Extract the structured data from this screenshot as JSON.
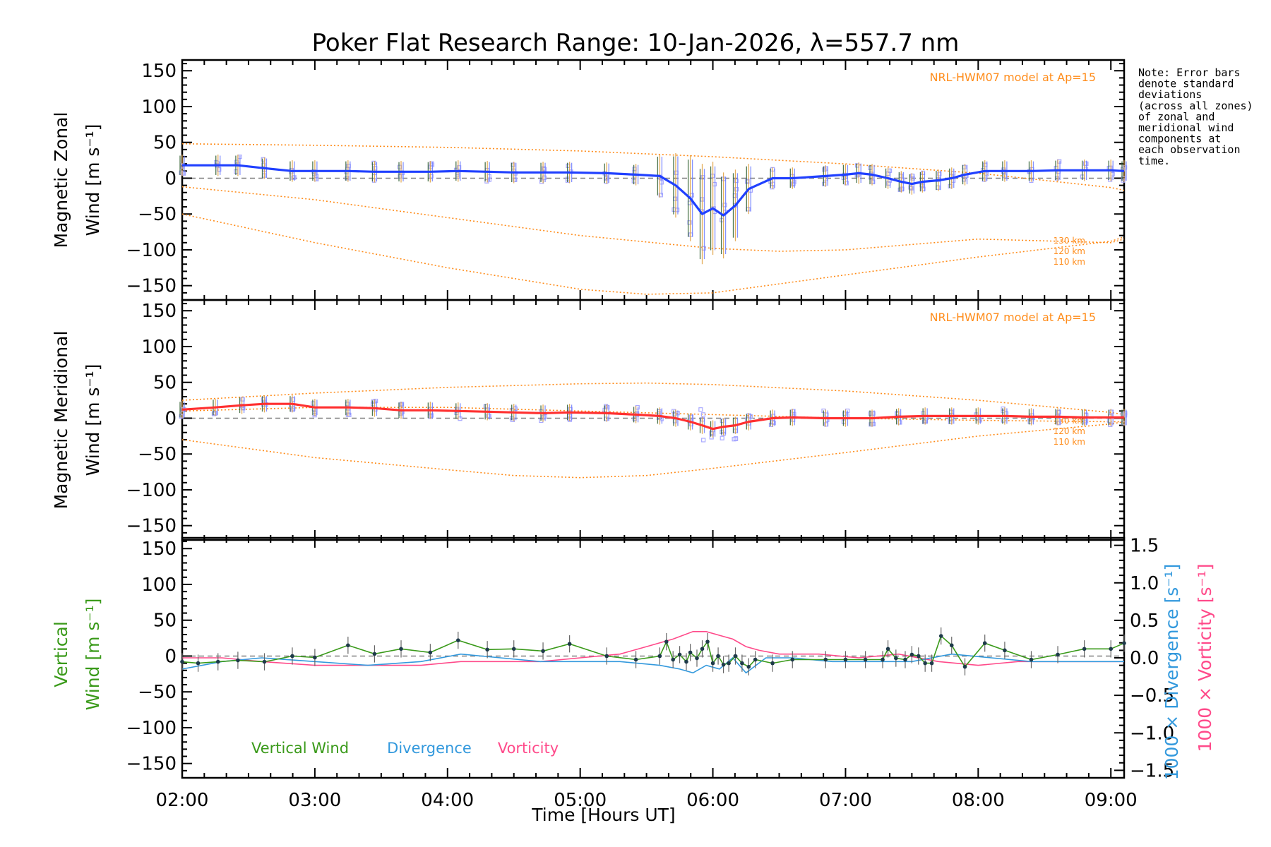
{
  "figure": {
    "title": "Poker Flat Research Range: 10-Jan-2026, λ=557.7 nm",
    "xlabel": "Time [Hours UT]",
    "note_lines": [
      "Note: Error bars",
      "denote standard",
      "deviations",
      "(across all zones)",
      "of zonal and",
      "meridional wind",
      "components at",
      "each observation",
      "time."
    ]
  },
  "colors": {
    "zonal": "#2040ff",
    "meridional": "#ff3030",
    "vertical": "#3a9a1a",
    "divergence": "#3399dd",
    "vorticity": "#ff4a8a",
    "model": "#ff8c1a",
    "zero_line": "#808080",
    "scatter": "#a9a9ff"
  },
  "chart_data": [
    {
      "type": "line",
      "name": "Zonal",
      "ylabel": [
        "Magnetic Zonal",
        "Wind [m s⁻¹]"
      ],
      "xlim": [
        2.0,
        9.1
      ],
      "ylim": [
        -170,
        165
      ],
      "xticks": [
        "02:00",
        "03:00",
        "04:00",
        "05:00",
        "06:00",
        "07:00",
        "08:00",
        "09:00"
      ],
      "yticks": [
        "150",
        "100",
        "50",
        "0",
        "−50",
        "−100",
        "−150"
      ],
      "ytick_values": [
        150,
        100,
        50,
        0,
        -50,
        -100,
        -150
      ],
      "model_label": "NRL-HWM07 model at Ap=15",
      "model_level_labels": [
        "130 km",
        "120 km",
        "110 km"
      ],
      "model_curves": [
        {
          "name": "130 km",
          "x": [
            2.0,
            3.0,
            4.0,
            5.0,
            5.5,
            6.0,
            7.0,
            8.0,
            9.0,
            9.1
          ],
          "y": [
            48,
            46,
            43,
            38,
            34,
            30,
            20,
            7,
            -13,
            -17
          ]
        },
        {
          "name": "120 km",
          "x": [
            2.0,
            3.0,
            4.0,
            5.0,
            6.0,
            6.5,
            7.0,
            8.0,
            9.0,
            9.1
          ],
          "y": [
            -12,
            -30,
            -55,
            -80,
            -98,
            -102,
            -100,
            -85,
            -90,
            -85
          ]
        },
        {
          "name": "110 km",
          "x": [
            2.0,
            3.0,
            4.0,
            5.0,
            5.5,
            6.0,
            7.0,
            8.0,
            9.0,
            9.1
          ],
          "y": [
            -50,
            -90,
            -125,
            -155,
            -162,
            -160,
            -135,
            -110,
            -88,
            -82
          ]
        }
      ],
      "series": [
        {
          "name": "Zonal wind",
          "x": [
            2.0,
            2.27,
            2.42,
            2.62,
            2.83,
            3.0,
            3.25,
            3.45,
            3.65,
            3.87,
            4.08,
            4.3,
            4.5,
            4.72,
            4.92,
            5.2,
            5.42,
            5.6,
            5.72,
            5.83,
            5.92,
            6.0,
            6.08,
            6.17,
            6.27,
            6.45,
            6.6,
            6.85,
            7.0,
            7.1,
            7.2,
            7.32,
            7.42,
            7.5,
            7.58,
            7.7,
            7.8,
            7.9,
            8.05,
            8.2,
            8.4,
            8.6,
            8.8,
            9.0,
            9.1
          ],
          "y": [
            18,
            18,
            18,
            14,
            10,
            10,
            10,
            9,
            9,
            9,
            10,
            9,
            8,
            8,
            8,
            7,
            5,
            3,
            -10,
            -28,
            -50,
            -42,
            -52,
            -38,
            -15,
            0,
            0,
            3,
            5,
            7,
            5,
            0,
            -5,
            -8,
            -5,
            -3,
            0,
            5,
            10,
            10,
            10,
            11,
            11,
            11,
            10
          ]
        }
      ],
      "error_bar_sd": [
        15,
        15,
        15,
        15,
        15,
        15,
        15,
        15,
        15,
        15,
        15,
        15,
        15,
        15,
        15,
        15,
        15,
        30,
        45,
        60,
        70,
        65,
        60,
        50,
        35,
        15,
        15,
        15,
        15,
        15,
        15,
        15,
        15,
        15,
        15,
        15,
        15,
        15,
        15,
        15,
        15,
        15,
        15,
        15,
        15
      ]
    },
    {
      "type": "line",
      "name": "Meridional",
      "ylabel": [
        "Magnetic Meridional",
        "Wind [m s⁻¹]"
      ],
      "xlim": [
        2.0,
        9.1
      ],
      "ylim": [
        -170,
        165
      ],
      "xticks": [
        "02:00",
        "03:00",
        "04:00",
        "05:00",
        "06:00",
        "07:00",
        "08:00",
        "09:00"
      ],
      "yticks": [
        "150",
        "100",
        "50",
        "0",
        "−50",
        "−100",
        "−150"
      ],
      "ytick_values": [
        150,
        100,
        50,
        0,
        -50,
        -100,
        -150
      ],
      "model_label": "NRL-HWM07 model at Ap=15",
      "model_level_labels": [
        "130 km",
        "120 km",
        "110 km"
      ],
      "model_curves": [
        {
          "name": "130 km",
          "x": [
            2.0,
            3.0,
            4.0,
            5.0,
            5.5,
            6.0,
            7.0,
            8.0,
            9.0,
            9.1
          ],
          "y": [
            25,
            35,
            43,
            48,
            49,
            47,
            38,
            25,
            8,
            5
          ]
        },
        {
          "name": "120 km",
          "x": [
            2.0,
            3.0,
            4.0,
            5.0,
            6.0,
            7.0,
            8.0,
            9.0,
            9.1
          ],
          "y": [
            10,
            15,
            15,
            10,
            5,
            0,
            -3,
            -5,
            -5
          ]
        },
        {
          "name": "110 km",
          "x": [
            2.0,
            3.0,
            4.0,
            4.5,
            5.0,
            5.5,
            6.0,
            7.0,
            8.0,
            9.0,
            9.1
          ],
          "y": [
            -30,
            -55,
            -72,
            -80,
            -83,
            -80,
            -70,
            -48,
            -25,
            -8,
            -5
          ]
        }
      ],
      "series": [
        {
          "name": "Meridional wind",
          "x": [
            2.0,
            2.25,
            2.45,
            2.62,
            2.83,
            3.0,
            3.25,
            3.45,
            3.65,
            3.87,
            4.08,
            4.3,
            4.5,
            4.72,
            4.92,
            5.2,
            5.42,
            5.6,
            5.72,
            5.83,
            5.92,
            6.0,
            6.08,
            6.17,
            6.27,
            6.45,
            6.6,
            6.85,
            7.0,
            7.2,
            7.4,
            7.6,
            7.8,
            8.0,
            8.2,
            8.4,
            8.6,
            8.8,
            9.0,
            9.1
          ],
          "y": [
            12,
            15,
            18,
            20,
            20,
            15,
            15,
            14,
            11,
            11,
            10,
            9,
            8,
            7,
            8,
            7,
            5,
            3,
            0,
            -5,
            -10,
            -15,
            -12,
            -10,
            -5,
            0,
            1,
            0,
            0,
            0,
            2,
            3,
            3,
            3,
            3,
            2,
            2,
            1,
            1,
            1
          ]
        }
      ]
    },
    {
      "type": "line",
      "name": "Vertical",
      "ylabel": [
        "Vertical",
        "Wind [m s⁻¹]"
      ],
      "y2label_divergence": "1000 × Divergence [s⁻¹]",
      "y2label_vorticity": "1000 × Vorticity [s⁻¹]",
      "xlim": [
        2.0,
        9.1
      ],
      "ylim": [
        -170,
        165
      ],
      "y2lim": [
        -1.6,
        1.6
      ],
      "xticks": [
        "02:00",
        "03:00",
        "04:00",
        "05:00",
        "06:00",
        "07:00",
        "08:00",
        "09:00"
      ],
      "yticks": [
        "150",
        "100",
        "50",
        "0",
        "−50",
        "−100",
        "−150"
      ],
      "ytick_values": [
        150,
        100,
        50,
        0,
        -50,
        -100,
        -150
      ],
      "y2ticks": [
        "1.5",
        "1.0",
        "0.5",
        "0.0",
        "−0.5",
        "−1.0",
        "−1.5"
      ],
      "y2tick_values": [
        1.5,
        1.0,
        0.5,
        0.0,
        -0.5,
        -1.0,
        -1.5
      ],
      "legend": [
        "Vertical Wind",
        "Divergence",
        "Vorticity"
      ],
      "series": [
        {
          "name": "Vertical Wind",
          "x": [
            2.0,
            2.12,
            2.27,
            2.42,
            2.62,
            2.83,
            3.0,
            3.25,
            3.45,
            3.65,
            3.87,
            4.08,
            4.3,
            4.5,
            4.72,
            4.92,
            5.2,
            5.42,
            5.6,
            5.65,
            5.7,
            5.75,
            5.8,
            5.83,
            5.88,
            5.92,
            5.96,
            6.0,
            6.04,
            6.08,
            6.12,
            6.17,
            6.22,
            6.27,
            6.32,
            6.45,
            6.6,
            6.85,
            7.0,
            7.15,
            7.28,
            7.32,
            7.38,
            7.45,
            7.5,
            7.55,
            7.6,
            7.65,
            7.72,
            7.8,
            7.9,
            8.05,
            8.2,
            8.4,
            8.6,
            8.8,
            9.0,
            9.1
          ],
          "y": [
            -8,
            -10,
            -8,
            -6,
            -8,
            0,
            -2,
            15,
            3,
            10,
            5,
            22,
            9,
            10,
            7,
            17,
            0,
            -5,
            0,
            20,
            -5,
            2,
            -8,
            5,
            -3,
            10,
            20,
            -10,
            0,
            -12,
            -10,
            0,
            -10,
            -15,
            -5,
            -10,
            -5,
            -5,
            -5,
            -5,
            -5,
            10,
            -3,
            -5,
            2,
            0,
            -10,
            -10,
            28,
            15,
            -15,
            18,
            8,
            -5,
            2,
            10,
            10,
            18
          ]
        },
        {
          "name": "Divergence",
          "x": [
            2.0,
            2.3,
            2.6,
            3.0,
            3.4,
            3.8,
            4.1,
            4.4,
            4.7,
            5.0,
            5.3,
            5.6,
            5.75,
            5.85,
            5.95,
            6.05,
            6.15,
            6.25,
            6.4,
            6.6,
            6.9,
            7.2,
            7.5,
            7.8,
            8.1,
            8.4,
            8.7,
            9.0,
            9.1
          ],
          "y": [
            -0.15,
            -0.05,
            0.0,
            -0.05,
            -0.1,
            -0.05,
            0.05,
            0.0,
            -0.05,
            -0.05,
            -0.05,
            -0.1,
            -0.15,
            -0.2,
            -0.1,
            -0.15,
            0.0,
            -0.2,
            0.0,
            0.0,
            -0.05,
            -0.05,
            -0.05,
            0.05,
            0.0,
            -0.05,
            -0.05,
            -0.05,
            -0.05
          ]
        },
        {
          "name": "Vorticity",
          "x": [
            2.0,
            2.3,
            2.6,
            3.0,
            3.4,
            3.8,
            4.1,
            4.4,
            4.7,
            5.0,
            5.3,
            5.5,
            5.7,
            5.85,
            5.95,
            6.05,
            6.15,
            6.25,
            6.35,
            6.5,
            6.8,
            7.1,
            7.4,
            7.7,
            8.0,
            8.3,
            8.6,
            8.9,
            9.1
          ],
          "y": [
            0.0,
            0.0,
            -0.05,
            -0.1,
            -0.1,
            -0.1,
            -0.05,
            -0.05,
            -0.05,
            0.0,
            0.05,
            0.15,
            0.25,
            0.35,
            0.35,
            0.3,
            0.25,
            0.15,
            0.1,
            0.05,
            0.05,
            0.0,
            0.05,
            -0.05,
            -0.1,
            -0.05,
            -0.05,
            -0.05,
            -0.05
          ]
        }
      ]
    }
  ]
}
